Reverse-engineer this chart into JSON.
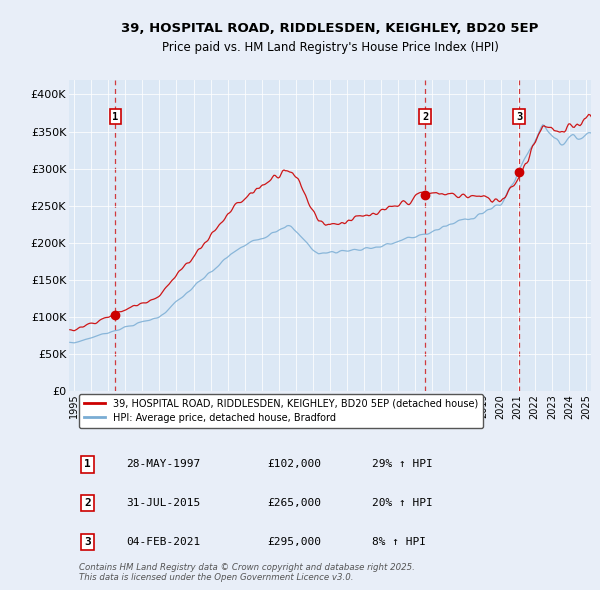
{
  "title1": "39, HOSPITAL ROAD, RIDDLESDEN, KEIGHLEY, BD20 5EP",
  "title2": "Price paid vs. HM Land Registry's House Price Index (HPI)",
  "ylabel_ticks": [
    "£0",
    "£50K",
    "£100K",
    "£150K",
    "£200K",
    "£250K",
    "£300K",
    "£350K",
    "£400K"
  ],
  "ytick_values": [
    0,
    50000,
    100000,
    150000,
    200000,
    250000,
    300000,
    350000,
    400000
  ],
  "ylim": [
    0,
    420000
  ],
  "xlim_start": 1994.7,
  "xlim_end": 2025.3,
  "bg_color": "#e8eef8",
  "plot_bg_color": "#dce8f5",
  "red_color": "#cc0000",
  "blue_color": "#7aadd4",
  "grid_color": "#ffffff",
  "transactions": [
    {
      "date_str": "28-MAY-1997",
      "date_num": 1997.41,
      "price": 102000,
      "label": "1"
    },
    {
      "date_str": "31-JUL-2015",
      "date_num": 2015.58,
      "price": 265000,
      "label": "2"
    },
    {
      "date_str": "04-FEB-2021",
      "date_num": 2021.09,
      "price": 295000,
      "label": "3"
    }
  ],
  "legend_line1": "39, HOSPITAL ROAD, RIDDLESDEN, KEIGHLEY, BD20 5EP (detached house)",
  "legend_line2": "HPI: Average price, detached house, Bradford",
  "footnote": "Contains HM Land Registry data © Crown copyright and database right 2025.\nThis data is licensed under the Open Government Licence v3.0.",
  "table_rows": [
    [
      "1",
      "28-MAY-1997",
      "£102,000",
      "29% ↑ HPI"
    ],
    [
      "2",
      "31-JUL-2015",
      "£265,000",
      "20% ↑ HPI"
    ],
    [
      "3",
      "04-FEB-2021",
      "£295,000",
      "8% ↑ HPI"
    ]
  ]
}
